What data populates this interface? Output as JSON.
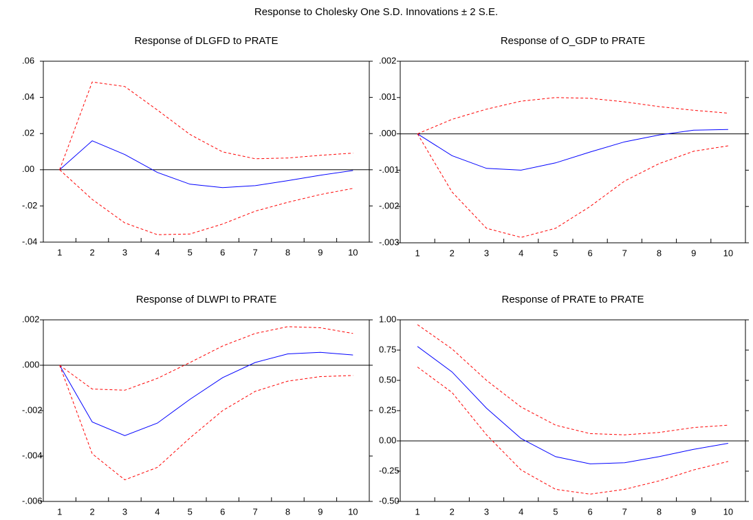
{
  "title": "Response to Cholesky One S.D. Innovations ± 2 S.E.",
  "chart_data": [
    {
      "type": "line",
      "title": "Response of DLGFD to PRATE",
      "categories": [
        "1",
        "2",
        "3",
        "4",
        "5",
        "6",
        "7",
        "8",
        "9",
        "10"
      ],
      "ylim": [
        -0.04,
        0.06
      ],
      "yticks": [
        {
          "value": -0.04,
          "label": "-.04"
        },
        {
          "value": -0.02,
          "label": "-.02"
        },
        {
          "value": 0,
          "label": ".00"
        },
        {
          "value": 0.02,
          "label": ".02"
        },
        {
          "value": 0.04,
          "label": ".04"
        },
        {
          "value": 0.06,
          "label": ".06"
        }
      ],
      "zero_line": true,
      "series": [
        {
          "color": "#0000ff",
          "style": "solid",
          "values": [
            0,
            0.016,
            0.0084,
            -0.0015,
            -0.008,
            -0.0099,
            -0.0088,
            -0.006,
            -0.003,
            -0.0004
          ]
        },
        {
          "color": "#ff0000",
          "style": "dashed",
          "values": [
            0,
            0.0485,
            0.046,
            0.033,
            0.0195,
            0.0099,
            0.0061,
            0.0065,
            0.008,
            0.0092
          ]
        },
        {
          "color": "#ff0000",
          "style": "dashed",
          "values": [
            0,
            -0.0164,
            -0.0294,
            -0.0359,
            -0.0355,
            -0.03,
            -0.0229,
            -0.018,
            -0.0137,
            -0.0103
          ]
        }
      ]
    },
    {
      "type": "line",
      "title": "Response of O_GDP to PRATE",
      "categories": [
        "1",
        "2",
        "3",
        "4",
        "5",
        "6",
        "7",
        "8",
        "9",
        "10"
      ],
      "ylim": [
        -0.003,
        0.002
      ],
      "yticks": [
        {
          "value": -0.003,
          "label": "-.003"
        },
        {
          "value": -0.002,
          "label": "-.002"
        },
        {
          "value": -0.001,
          "label": "-.001"
        },
        {
          "value": 0,
          "label": ".000"
        },
        {
          "value": 0.001,
          "label": ".001"
        },
        {
          "value": 0.002,
          "label": ".002"
        }
      ],
      "zero_line": true,
      "series": [
        {
          "color": "#0000ff",
          "style": "solid",
          "values": [
            0,
            -0.0006,
            -0.00095,
            -0.001,
            -0.0008,
            -0.0005,
            -0.00022,
            -3e-05,
            0.0001,
            0.00012
          ]
        },
        {
          "color": "#ff0000",
          "style": "dashed",
          "values": [
            0,
            0.0004,
            0.00068,
            0.0009,
            0.001,
            0.00098,
            0.00088,
            0.00075,
            0.00065,
            0.00057
          ]
        },
        {
          "color": "#ff0000",
          "style": "dashed",
          "values": [
            0,
            -0.0016,
            -0.0026,
            -0.00285,
            -0.0026,
            -0.002,
            -0.0013,
            -0.00082,
            -0.00048,
            -0.00033
          ]
        }
      ]
    },
    {
      "type": "line",
      "title": "Response of DLWPI to PRATE",
      "categories": [
        "1",
        "2",
        "3",
        "4",
        "5",
        "6",
        "7",
        "8",
        "9",
        "10"
      ],
      "ylim": [
        -0.006,
        0.002
      ],
      "yticks": [
        {
          "value": -0.006,
          "label": "-.006"
        },
        {
          "value": -0.004,
          "label": "-.004"
        },
        {
          "value": -0.002,
          "label": "-.002"
        },
        {
          "value": 0,
          "label": ".000"
        },
        {
          "value": 0.002,
          "label": ".002"
        }
      ],
      "zero_line": true,
      "series": [
        {
          "color": "#0000ff",
          "style": "solid",
          "values": [
            0,
            -0.0025,
            -0.0031,
            -0.00255,
            -0.0015,
            -0.00055,
            0.00012,
            0.0005,
            0.00057,
            0.00045
          ]
        },
        {
          "color": "#ff0000",
          "style": "dashed",
          "values": [
            0,
            -0.00105,
            -0.0011,
            -0.00058,
            0.00012,
            0.00085,
            0.0014,
            0.0017,
            0.00165,
            0.0014
          ]
        },
        {
          "color": "#ff0000",
          "style": "dashed",
          "values": [
            0,
            -0.0039,
            -0.00505,
            -0.0045,
            -0.0032,
            -0.002,
            -0.00115,
            -0.0007,
            -0.0005,
            -0.00045
          ]
        }
      ]
    },
    {
      "type": "line",
      "title": "Response of PRATE to PRATE",
      "categories": [
        "1",
        "2",
        "3",
        "4",
        "5",
        "6",
        "7",
        "8",
        "9",
        "10"
      ],
      "ylim": [
        -0.5,
        1.0
      ],
      "yticks": [
        {
          "value": -0.5,
          "label": "-0.50"
        },
        {
          "value": -0.25,
          "label": "-0.25"
        },
        {
          "value": 0,
          "label": "0.00"
        },
        {
          "value": 0.25,
          "label": "0.25"
        },
        {
          "value": 0.5,
          "label": "0.50"
        },
        {
          "value": 0.75,
          "label": "0.75"
        },
        {
          "value": 1.0,
          "label": "1.00"
        }
      ],
      "zero_line": true,
      "series": [
        {
          "color": "#0000ff",
          "style": "solid",
          "values": [
            0.78,
            0.57,
            0.27,
            0.02,
            -0.13,
            -0.19,
            -0.18,
            -0.13,
            -0.07,
            -0.02
          ]
        },
        {
          "color": "#ff0000",
          "style": "dashed",
          "values": [
            0.96,
            0.76,
            0.5,
            0.28,
            0.13,
            0.06,
            0.05,
            0.07,
            0.11,
            0.13
          ]
        },
        {
          "color": "#ff0000",
          "style": "dashed",
          "values": [
            0.61,
            0.4,
            0.05,
            -0.24,
            -0.4,
            -0.44,
            -0.4,
            -0.33,
            -0.24,
            -0.17
          ]
        }
      ]
    }
  ]
}
